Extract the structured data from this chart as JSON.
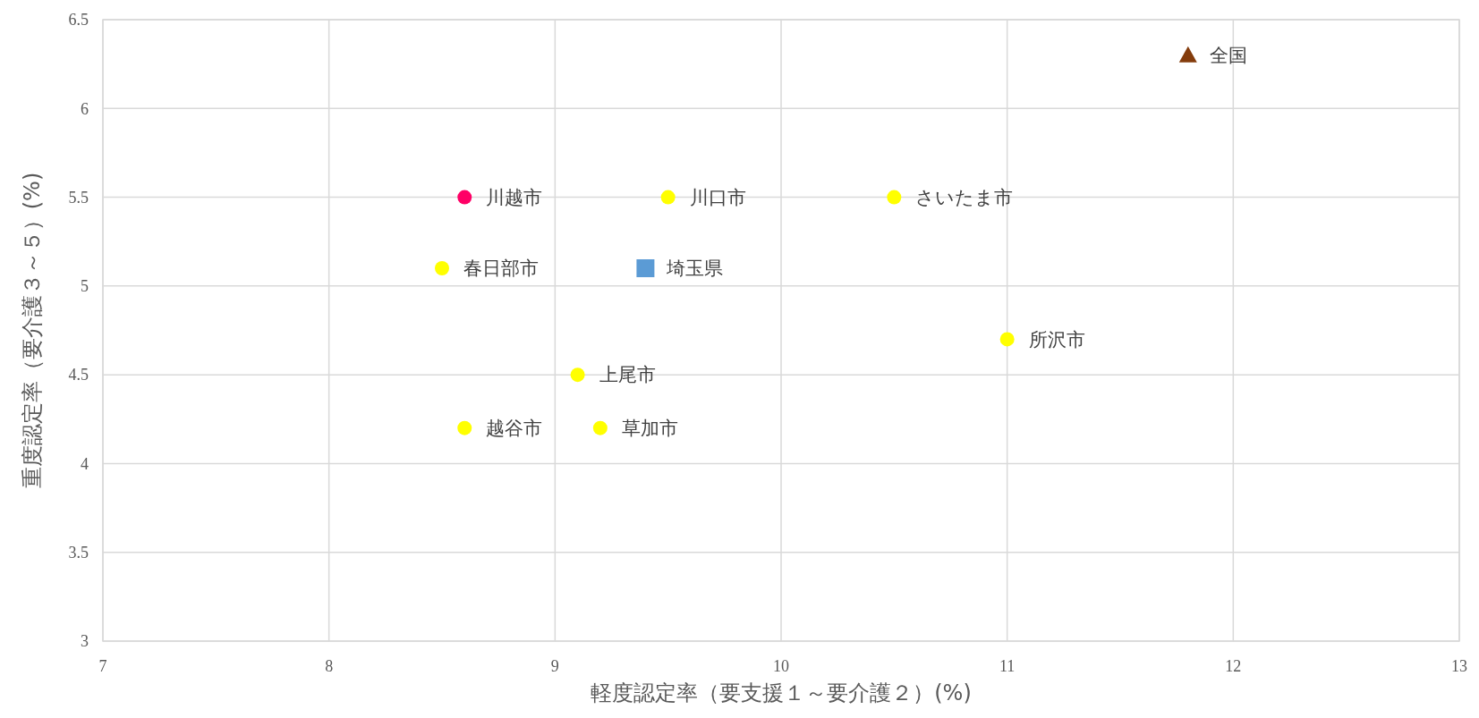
{
  "chart_data": {
    "type": "scatter",
    "xlabel": "軽度認定率（要支援１～要介護２）(%)",
    "ylabel": "重度認定率（要介護３～５）(%)",
    "xlim": [
      7,
      13
    ],
    "ylim": [
      3,
      6.5
    ],
    "xticks": [
      7,
      8,
      9,
      10,
      11,
      12,
      13
    ],
    "yticks": [
      3,
      3.5,
      4,
      4.5,
      5,
      5.5,
      6,
      6.5
    ],
    "grid": true,
    "series": [
      {
        "name": "川越市",
        "color": "#ff0066",
        "x": [
          8.6
        ],
        "values": [
          5.5
        ],
        "marker": "circle"
      },
      {
        "name": "川口市",
        "color": "#ffff00",
        "x": [
          9.5
        ],
        "values": [
          5.5
        ],
        "marker": "circle"
      },
      {
        "name": "さいたま市",
        "color": "#ffff00",
        "x": [
          10.5
        ],
        "values": [
          5.5
        ],
        "marker": "circle"
      },
      {
        "name": "春日部市",
        "color": "#ffff00",
        "x": [
          8.5
        ],
        "values": [
          5.1
        ],
        "marker": "circle"
      },
      {
        "name": "埼玉県",
        "color": "#5b9bd5",
        "x": [
          9.4
        ],
        "values": [
          5.1
        ],
        "marker": "square"
      },
      {
        "name": "所沢市",
        "color": "#ffff00",
        "x": [
          11
        ],
        "values": [
          4.7
        ],
        "marker": "circle"
      },
      {
        "name": "上尾市",
        "color": "#ffff00",
        "x": [
          9.1
        ],
        "values": [
          4.5
        ],
        "marker": "circle"
      },
      {
        "name": "越谷市",
        "color": "#ffff00",
        "x": [
          8.6
        ],
        "values": [
          4.2
        ],
        "marker": "circle"
      },
      {
        "name": "草加市",
        "color": "#ffff00",
        "x": [
          9.2
        ],
        "values": [
          4.2
        ],
        "marker": "circle"
      },
      {
        "name": "全国",
        "color": "#843c0c",
        "x": [
          11.8
        ],
        "values": [
          6.3
        ],
        "marker": "triangle"
      }
    ]
  }
}
